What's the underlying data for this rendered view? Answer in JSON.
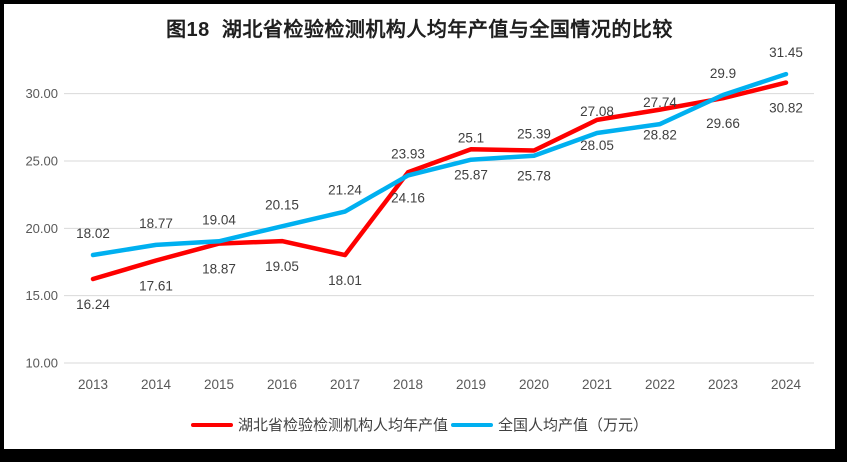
{
  "frame": {
    "border_color": "#000000",
    "background": "#FFFFFF"
  },
  "chart_data": {
    "type": "line",
    "title": "图18  湖北省检验检测机构人均年产值与全国情况的比较",
    "categories": [
      "2013",
      "2014",
      "2015",
      "2016",
      "2017",
      "2018",
      "2019",
      "2020",
      "2021",
      "2022",
      "2023",
      "2024"
    ],
    "series": [
      {
        "key": "hubei",
        "name": "湖北省检验检测机构人均年产值",
        "color": "#FE0000",
        "label_position": "below",
        "values": [
          16.24,
          17.61,
          18.87,
          19.05,
          18.01,
          24.16,
          25.87,
          25.78,
          28.05,
          28.82,
          29.66,
          30.82
        ]
      },
      {
        "key": "national",
        "name": "全国人均产值（万元）",
        "color": "#00B0F0",
        "label_position": "above",
        "values": [
          18.02,
          18.77,
          19.04,
          20.15,
          21.24,
          23.93,
          25.1,
          25.39,
          27.08,
          27.74,
          29.9,
          31.45
        ]
      }
    ],
    "xlabel": "",
    "ylabel": "",
    "ylim": [
      10,
      32.5
    ],
    "yticks": [
      10,
      15,
      20,
      25,
      30
    ],
    "ytick_labels": [
      "10.00",
      "15.00",
      "20.00",
      "25.00",
      "30.00"
    ],
    "grid": true,
    "legend_position": "bottom",
    "gridline_color": "#D9D9D9",
    "axis_text_color": "#595959",
    "data_label_color": "#404040"
  }
}
